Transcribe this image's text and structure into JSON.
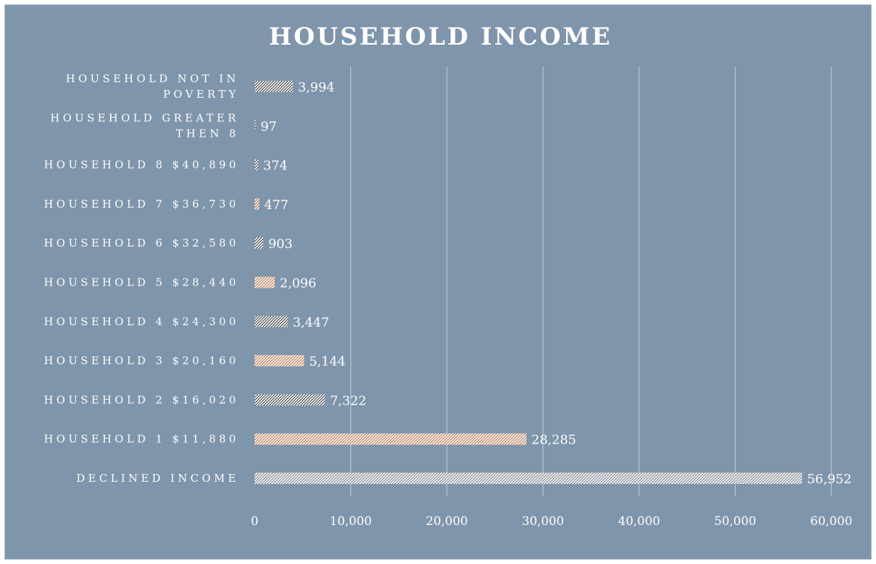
{
  "chart_data": {
    "type": "bar",
    "orientation": "horizontal",
    "title": "HOUSEHOLD INCOME",
    "xlabel": "",
    "ylabel": "",
    "xlim": [
      0,
      60000
    ],
    "x_ticks": [
      0,
      10000,
      20000,
      30000,
      40000,
      50000,
      60000
    ],
    "x_tick_labels": [
      "0",
      "10,000",
      "20,000",
      "30,000",
      "40,000",
      "50,000",
      "60,000"
    ],
    "grid": true,
    "legend": "none",
    "categories": [
      {
        "label_lines": [
          "HOUSEHOLD NOT IN",
          "POVERTY"
        ],
        "value": 3994,
        "value_label": "3,994",
        "hatch": "#2f3138"
      },
      {
        "label_lines": [
          "HOUSEHOLD GREATER",
          "THEN 8"
        ],
        "value": 97,
        "value_label": "97",
        "hatch": "#2f3138"
      },
      {
        "label_lines": [
          "HOUSEHOLD 8 $40,890"
        ],
        "value": 374,
        "value_label": "374",
        "hatch": "#2f3138"
      },
      {
        "label_lines": [
          "HOUSEHOLD 7 $36,730"
        ],
        "value": 477,
        "value_label": "477",
        "hatch": "#a0583a"
      },
      {
        "label_lines": [
          "HOUSEHOLD 6 $32,580"
        ],
        "value": 903,
        "value_label": "903",
        "hatch": "#2f3138"
      },
      {
        "label_lines": [
          "HOUSEHOLD 5 $28,440"
        ],
        "value": 2096,
        "value_label": "2,096",
        "hatch": "#b0683e"
      },
      {
        "label_lines": [
          "HOUSEHOLD 4 $24,300"
        ],
        "value": 3447,
        "value_label": "3,447",
        "hatch": "#2f3138"
      },
      {
        "label_lines": [
          "HOUSEHOLD 3 $20,160"
        ],
        "value": 5144,
        "value_label": "5,144",
        "hatch": "#b0683e"
      },
      {
        "label_lines": [
          "HOUSEHOLD 2 $16,020"
        ],
        "value": 7322,
        "value_label": "7,322",
        "hatch": "#2f3138"
      },
      {
        "label_lines": [
          "HOUSEHOLD 1 $11,880"
        ],
        "value": 28285,
        "value_label": "28,285",
        "hatch": "#b0683e"
      },
      {
        "label_lines": [
          "DECLINED INCOME"
        ],
        "value": 56952,
        "value_label": "56,952",
        "hatch": "#6e7480"
      }
    ],
    "colors": {
      "background": "#7f95ab",
      "border": "#ffffff",
      "bar_fill": "#ffffff",
      "text": "#ffffff",
      "grid": "#c3cfdb"
    }
  }
}
